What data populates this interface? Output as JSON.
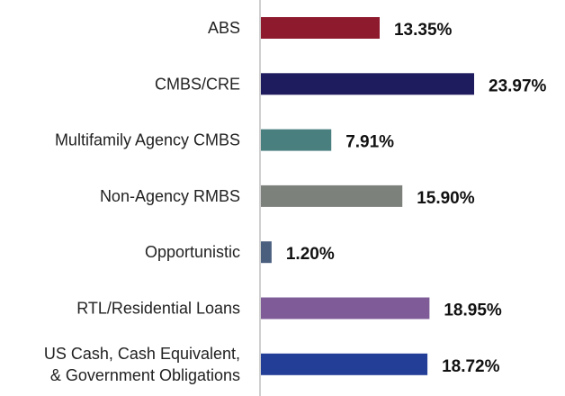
{
  "chart_data": {
    "type": "bar",
    "orientation": "horizontal",
    "categories": [
      [
        "ABS"
      ],
      [
        "CMBS/CRE"
      ],
      [
        "Multifamily Agency CMBS"
      ],
      [
        "Non-Agency RMBS"
      ],
      [
        "Opportunistic"
      ],
      [
        "RTL/Residential Loans"
      ],
      [
        "US Cash, Cash Equivalent,",
        "& Government Obligations"
      ]
    ],
    "values": [
      13.35,
      23.97,
      7.91,
      15.9,
      1.2,
      18.95,
      18.72
    ],
    "value_labels": [
      "13.35%",
      "23.97%",
      "7.91%",
      "15.90%",
      "1.20%",
      "18.95%",
      "18.72%"
    ],
    "colors": [
      "#8e1a2e",
      "#1e1b5e",
      "#4a7f80",
      "#7d817b",
      "#4a5e7e",
      "#7f5c98",
      "#233e96"
    ],
    "axis_color": "#bfbfbf",
    "xlim": [
      0,
      23.97
    ],
    "grid": false,
    "legend": "none"
  }
}
